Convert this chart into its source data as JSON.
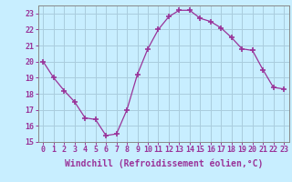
{
  "x": [
    0,
    1,
    2,
    3,
    4,
    5,
    6,
    7,
    8,
    9,
    10,
    11,
    12,
    13,
    14,
    15,
    16,
    17,
    18,
    19,
    20,
    21,
    22,
    23
  ],
  "y": [
    20,
    19,
    18.2,
    17.5,
    16.5,
    16.4,
    15.4,
    15.5,
    17.0,
    19.2,
    20.8,
    22.0,
    22.8,
    23.2,
    23.2,
    22.7,
    22.5,
    22.1,
    21.5,
    20.8,
    20.7,
    19.5,
    18.4,
    18.3
  ],
  "line_color": "#993399",
  "marker": "+",
  "marker_size": 4,
  "marker_linewidth": 1.2,
  "background_color": "#c8eeff",
  "grid_color": "#aaccdd",
  "xlabel": "Windchill (Refroidissement éolien,°C)",
  "ylabel": "",
  "ylim": [
    15,
    23.5
  ],
  "xlim": [
    -0.5,
    23.5
  ],
  "yticks": [
    15,
    16,
    17,
    18,
    19,
    20,
    21,
    22,
    23
  ],
  "xticks": [
    0,
    1,
    2,
    3,
    4,
    5,
    6,
    7,
    8,
    9,
    10,
    11,
    12,
    13,
    14,
    15,
    16,
    17,
    18,
    19,
    20,
    21,
    22,
    23
  ],
  "tick_label_fontsize": 6,
  "xlabel_fontsize": 7,
  "axis_color": "#993399",
  "spine_color": "#888888"
}
